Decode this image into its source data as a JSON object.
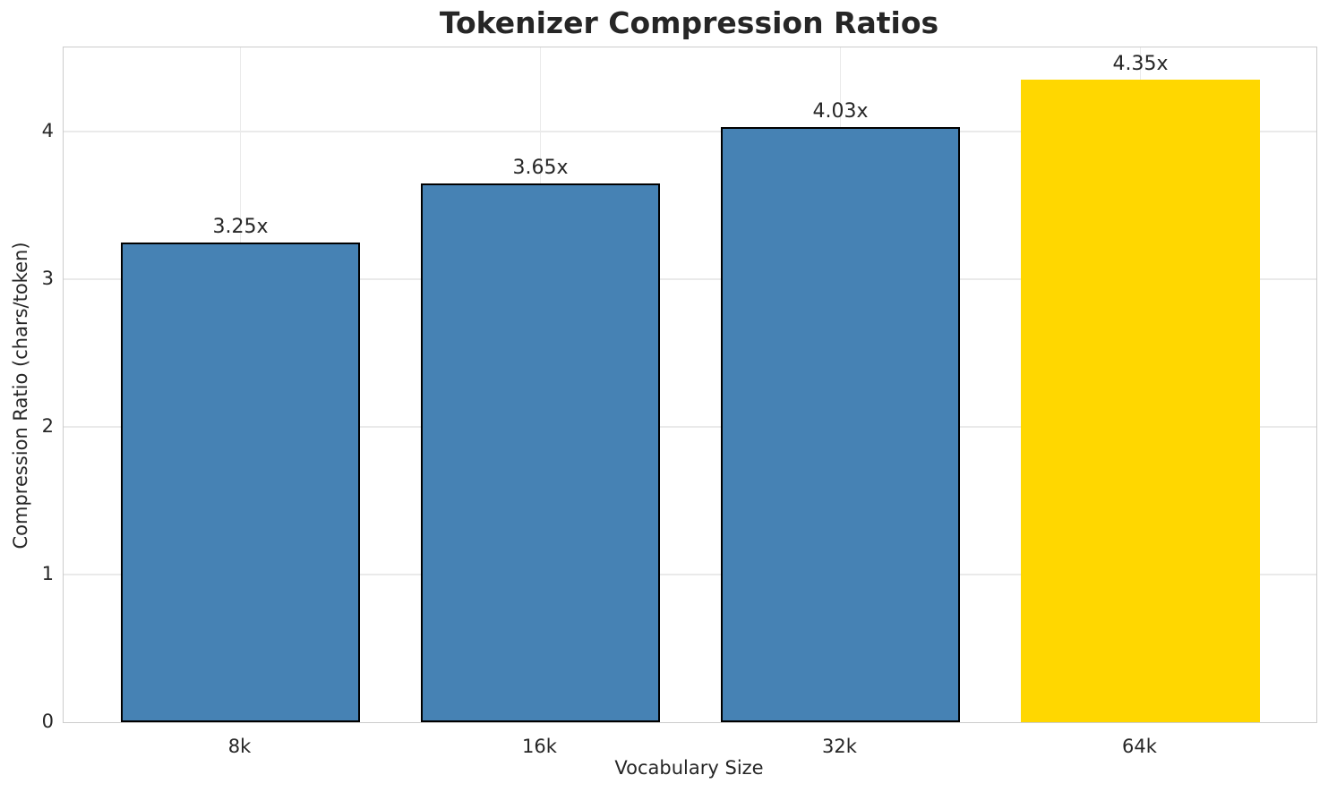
{
  "chart_data": {
    "type": "bar",
    "title": "Tokenizer Compression Ratios",
    "xlabel": "Vocabulary Size",
    "ylabel": "Compression Ratio (chars/token)",
    "categories": [
      "8k",
      "16k",
      "32k",
      "64k"
    ],
    "values": [
      3.25,
      3.65,
      4.03,
      4.35
    ],
    "bar_labels": [
      "3.25x",
      "3.65x",
      "4.03x",
      "4.35x"
    ],
    "yticks": [
      0,
      1,
      2,
      3,
      4
    ],
    "ylim": [
      0,
      4.57
    ],
    "grid": true,
    "legend_position": "none",
    "highlight_index": 3,
    "colors": {
      "bar_default": "#4682B4",
      "bar_highlight": "#FFD700",
      "bar_edge": "#000000",
      "grid": "#eaeaea",
      "spine": "#cccccc",
      "text": "#262626",
      "background": "#ffffff"
    }
  }
}
